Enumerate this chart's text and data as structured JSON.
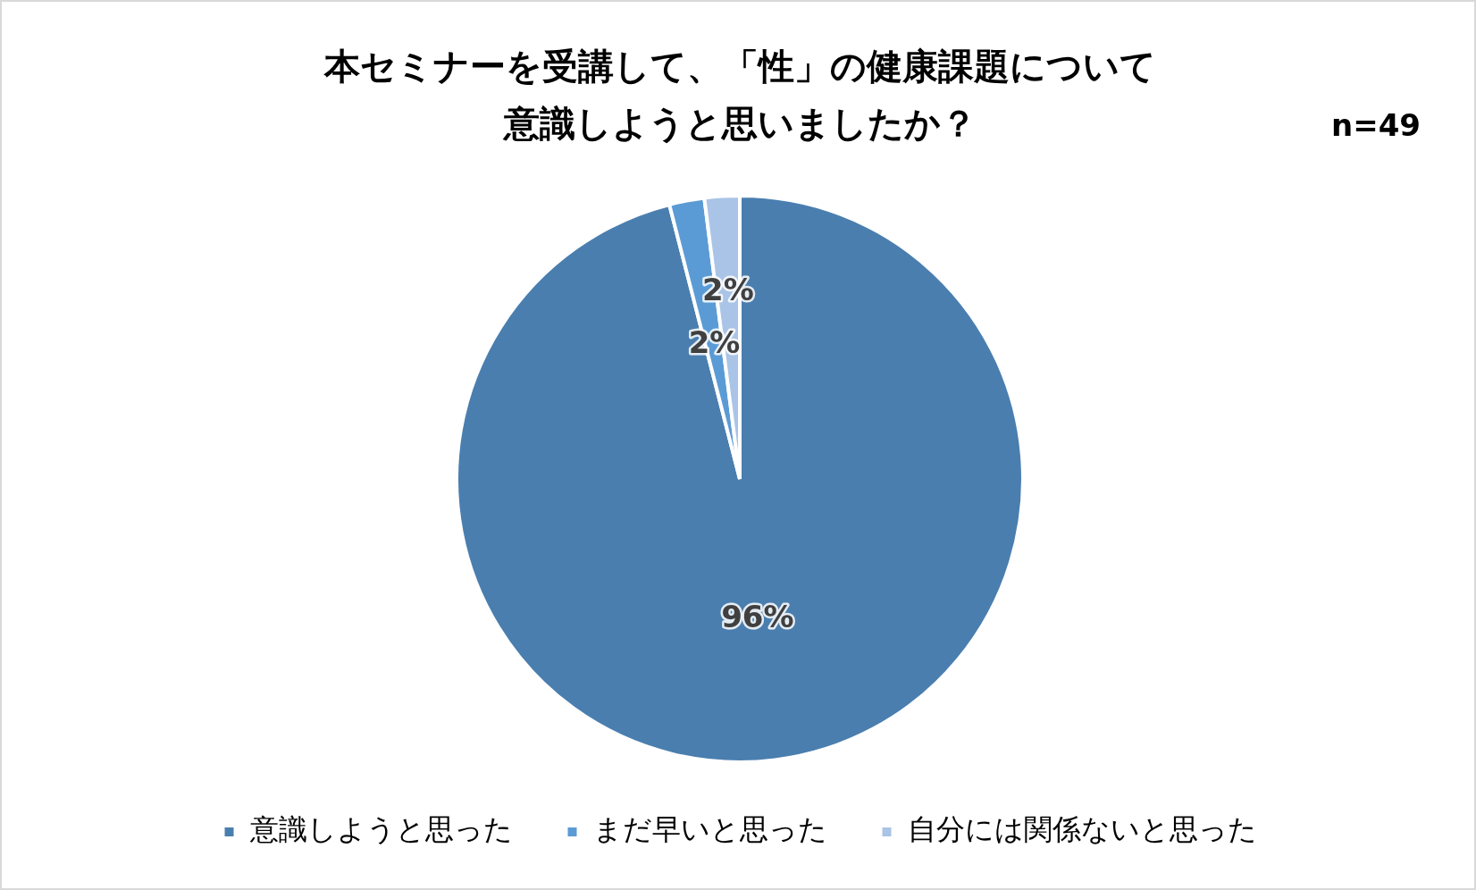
{
  "chart_data": {
    "type": "pie",
    "title": "本セミナーを受講して、「性」の健康課題について意識しようと思いましたか？",
    "categories": [
      "意識しようと思った",
      "まだ早いと思った",
      "自分には関係ないと思った"
    ],
    "values": [
      96,
      2,
      2
    ],
    "colors": [
      "#4a7eaf",
      "#5b9bd5",
      "#a9c4e6"
    ],
    "value_labels": [
      "96%",
      "2%",
      "2%"
    ],
    "annotations": [
      "n=49"
    ],
    "legend": "bottom"
  }
}
